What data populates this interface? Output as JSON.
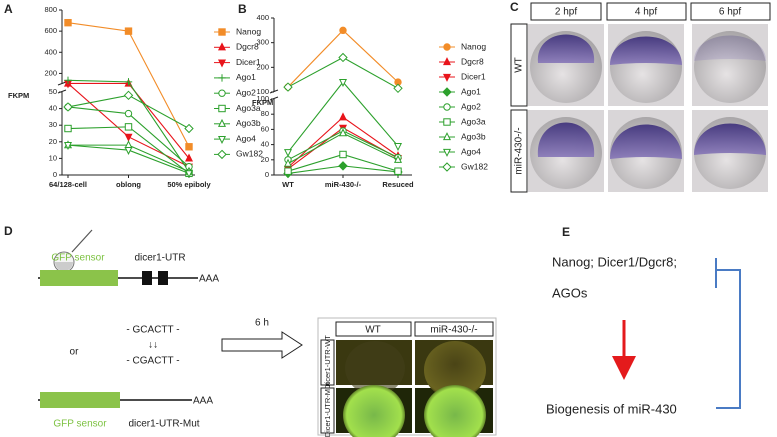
{
  "panel_labels": [
    "A",
    "B",
    "C",
    "D",
    "E"
  ],
  "chart_data": [
    {
      "type": "line",
      "categories": [
        "64/128-cell",
        "oblong",
        "50% epiboly"
      ],
      "y_label": "FKPM",
      "ylim": [
        0,
        800
      ],
      "axis_break": [
        50,
        100
      ],
      "yticks": [
        0,
        10,
        20,
        30,
        40,
        50
      ],
      "yticks_upper": [
        200,
        400,
        600,
        800
      ],
      "legend": "right",
      "series": [
        {
          "name": "Nanog",
          "color": "#f28c28",
          "marker": "square",
          "filled": true,
          "values": [
            680,
            600,
            17
          ]
        },
        {
          "name": "Dgcr8",
          "color": "#e8141b",
          "marker": "triangle",
          "filled": true,
          "values": [
            105,
            105,
            10
          ]
        },
        {
          "name": "Dicer1",
          "color": "#e8141b",
          "marker": "triangle-down",
          "filled": true,
          "values": [
            105,
            23,
            5
          ]
        },
        {
          "name": "Ago1",
          "color": "#2ca02c",
          "marker": "plus",
          "filled": false,
          "values": [
            135,
            120,
            2
          ]
        },
        {
          "name": "Ago2",
          "color": "#2ca02c",
          "marker": "circle",
          "filled": false,
          "values": [
            41,
            37,
            5
          ]
        },
        {
          "name": "Ago3a",
          "color": "#2ca02c",
          "marker": "square",
          "filled": false,
          "values": [
            28,
            29,
            1
          ]
        },
        {
          "name": "Ago3b",
          "color": "#2ca02c",
          "marker": "triangle",
          "filled": false,
          "values": [
            18,
            18,
            2
          ]
        },
        {
          "name": "Ago4",
          "color": "#2ca02c",
          "marker": "triangle-down",
          "filled": false,
          "values": [
            18,
            15,
            1
          ]
        },
        {
          "name": "Gw182",
          "color": "#2ca02c",
          "marker": "diamond",
          "filled": false,
          "values": [
            41,
            48,
            28
          ]
        }
      ]
    },
    {
      "type": "line",
      "categories": [
        "WT",
        "miR-430-/-",
        "Resuced"
      ],
      "y_label": "FKPM",
      "ylim": [
        0,
        400
      ],
      "axis_break": [
        100,
        100
      ],
      "yticks": [
        0,
        20,
        40,
        60,
        80,
        100
      ],
      "yticks_upper": [
        100,
        200,
        300,
        400
      ],
      "legend": "right",
      "series": [
        {
          "name": "Nanog",
          "color": "#f28c28",
          "marker": "circle",
          "filled": true,
          "values": [
            120,
            350,
            140
          ]
        },
        {
          "name": "Dgcr8",
          "color": "#e8141b",
          "marker": "triangle",
          "filled": true,
          "values": [
            10,
            76,
            25
          ]
        },
        {
          "name": "Dicer1",
          "color": "#e8141b",
          "marker": "triangle-down",
          "filled": true,
          "values": [
            8,
            62,
            22
          ]
        },
        {
          "name": "Ago1",
          "color": "#2ca02c",
          "marker": "diamond",
          "filled": true,
          "values": [
            2,
            12,
            4
          ]
        },
        {
          "name": "Ago2",
          "color": "#2ca02c",
          "marker": "circle",
          "filled": false,
          "values": [
            20,
            58,
            23
          ]
        },
        {
          "name": "Ago3a",
          "color": "#2ca02c",
          "marker": "square",
          "filled": false,
          "values": [
            5,
            27,
            5
          ]
        },
        {
          "name": "Ago3b",
          "color": "#2ca02c",
          "marker": "triangle",
          "filled": false,
          "values": [
            15,
            55,
            20
          ]
        },
        {
          "name": "Ago4",
          "color": "#2ca02c",
          "marker": "triangle-down",
          "filled": false,
          "values": [
            30,
            140,
            38
          ]
        },
        {
          "name": "Gw182",
          "color": "#2ca02c",
          "marker": "diamond",
          "filled": false,
          "values": [
            120,
            240,
            115
          ]
        }
      ]
    }
  ],
  "panel_c": {
    "columns": [
      "2 hpf",
      "4 hpf",
      "6 hpf"
    ],
    "rows": [
      "WT",
      "miR-430-/-"
    ]
  },
  "panel_d": {
    "construct_wt": {
      "sensor": "GFP sensor",
      "utr": "dicer1-UTR",
      "polya": "AAA"
    },
    "seq_wt": "- GCACTT -",
    "arrows": "↓↓",
    "seq_mut": "- CGACTT -",
    "or": "or",
    "construct_mut": {
      "sensor": "GFP sensor",
      "utr": "dicer1-UTR-Mut",
      "polya": "AAA"
    },
    "time": "6 h",
    "columns": [
      "WT",
      "miR-430-/-"
    ],
    "rows": [
      "Dicer1-UTR-WT",
      "Dicer1-UTR-Mut"
    ]
  },
  "panel_e": {
    "regulators_line1": "Nanog; Dicer1/Dgcr8;",
    "regulators_line2": "AGOs",
    "target": "Biogenesis of miR-430"
  }
}
